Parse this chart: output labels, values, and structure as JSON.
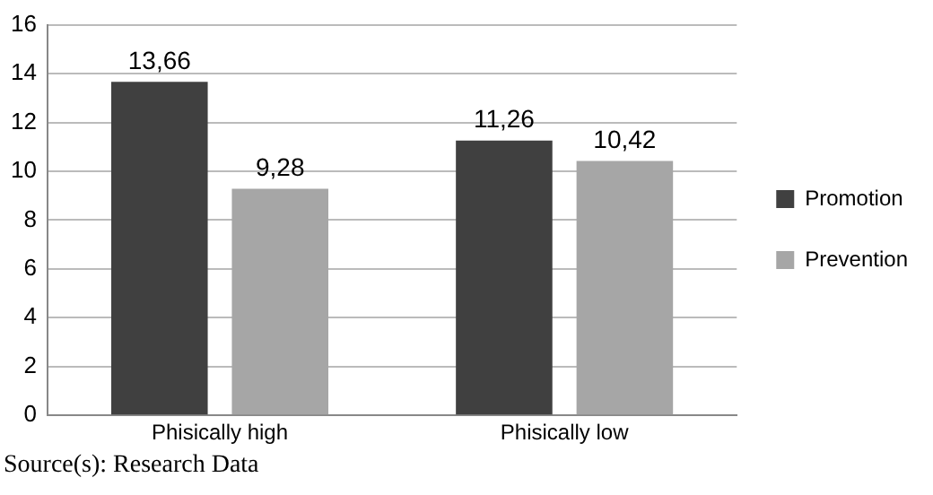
{
  "chart_data": {
    "type": "bar",
    "categories": [
      "Phisically high",
      "Phisically low"
    ],
    "series": [
      {
        "name": "Promotion",
        "color": "#404040",
        "values": [
          13.66,
          11.26
        ],
        "value_labels": [
          "13,66",
          "11,26"
        ]
      },
      {
        "name": "Prevention",
        "color": "#a6a6a6",
        "values": [
          9.28,
          10.42
        ],
        "value_labels": [
          "9,28",
          "10,42"
        ]
      }
    ],
    "ylim": [
      0,
      16
    ],
    "yticks": [
      0,
      2,
      4,
      6,
      8,
      10,
      12,
      14,
      16
    ],
    "grid": "y",
    "legend": "right",
    "annotations": [
      "Source(s): Research Data"
    ]
  }
}
